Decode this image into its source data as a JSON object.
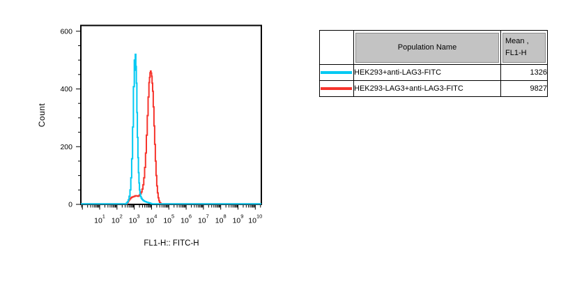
{
  "chart_data": {
    "type": "line",
    "subtype": "flow-cytometry-histogram",
    "title": "",
    "xlabel": "FL1-H:: FITC-H",
    "ylabel": "Count",
    "x_scale": "log10",
    "x_log_range": [
      -0.09,
      10.35
    ],
    "x_tick_base": "10",
    "x_tick_exponents": [
      1,
      2,
      3,
      4,
      5,
      6,
      7,
      8,
      9,
      10
    ],
    "y_range": [
      0,
      620
    ],
    "y_major_ticks": [
      0,
      200,
      400,
      600
    ],
    "y_minor_step": 50,
    "grid": false,
    "legend_position": "separate-table",
    "series": [
      {
        "name": "HEK293+anti-LAG3-FITC",
        "color": "#00C9F2",
        "mean_fl1h": 1326,
        "peak_count": 520,
        "peak_log10_x": 3.06,
        "points": [
          [
            2.3,
            0
          ],
          [
            2.4,
            1
          ],
          [
            2.48,
            2
          ],
          [
            2.55,
            5
          ],
          [
            2.6,
            9
          ],
          [
            2.65,
            16
          ],
          [
            2.7,
            28
          ],
          [
            2.75,
            50
          ],
          [
            2.8,
            92
          ],
          [
            2.85,
            158
          ],
          [
            2.9,
            268
          ],
          [
            2.95,
            408
          ],
          [
            3.0,
            500
          ],
          [
            3.03,
            465
          ],
          [
            3.06,
            520
          ],
          [
            3.09,
            478
          ],
          [
            3.12,
            420
          ],
          [
            3.15,
            318
          ],
          [
            3.18,
            232
          ],
          [
            3.21,
            162
          ],
          [
            3.24,
            110
          ],
          [
            3.27,
            74
          ],
          [
            3.3,
            50
          ],
          [
            3.33,
            36
          ],
          [
            3.36,
            27
          ],
          [
            3.4,
            21
          ],
          [
            3.45,
            17
          ],
          [
            3.5,
            14
          ],
          [
            3.55,
            12
          ],
          [
            3.6,
            10
          ],
          [
            3.65,
            9
          ],
          [
            3.7,
            8
          ],
          [
            3.75,
            7
          ],
          [
            3.8,
            6
          ],
          [
            3.85,
            5
          ],
          [
            3.9,
            4
          ],
          [
            3.95,
            3
          ],
          [
            4.0,
            2
          ],
          [
            4.05,
            1
          ],
          [
            4.15,
            0
          ]
        ]
      },
      {
        "name": "HEK293-LAG3+anti-LAG3-FITC",
        "color": "#F6342C",
        "mean_fl1h": 9827,
        "peak_count": 462,
        "peak_log10_x": 3.94,
        "points": [
          [
            2.52,
            0
          ],
          [
            2.58,
            3
          ],
          [
            2.62,
            7
          ],
          [
            2.66,
            12
          ],
          [
            2.7,
            16
          ],
          [
            2.75,
            20
          ],
          [
            2.8,
            23
          ],
          [
            2.85,
            25
          ],
          [
            2.9,
            26
          ],
          [
            2.95,
            27
          ],
          [
            3.0,
            28
          ],
          [
            3.05,
            30
          ],
          [
            3.1,
            30
          ],
          [
            3.15,
            29
          ],
          [
            3.2,
            28
          ],
          [
            3.25,
            30
          ],
          [
            3.3,
            33
          ],
          [
            3.35,
            37
          ],
          [
            3.4,
            43
          ],
          [
            3.45,
            53
          ],
          [
            3.5,
            68
          ],
          [
            3.55,
            92
          ],
          [
            3.6,
            128
          ],
          [
            3.65,
            178
          ],
          [
            3.7,
            240
          ],
          [
            3.75,
            308
          ],
          [
            3.8,
            372
          ],
          [
            3.85,
            422
          ],
          [
            3.88,
            440
          ],
          [
            3.91,
            456
          ],
          [
            3.94,
            462
          ],
          [
            3.97,
            455
          ],
          [
            4.0,
            444
          ],
          [
            4.03,
            420
          ],
          [
            4.06,
            392
          ],
          [
            4.1,
            338
          ],
          [
            4.14,
            272
          ],
          [
            4.18,
            208
          ],
          [
            4.22,
            150
          ],
          [
            4.26,
            100
          ],
          [
            4.3,
            64
          ],
          [
            4.34,
            40
          ],
          [
            4.38,
            23
          ],
          [
            4.42,
            13
          ],
          [
            4.46,
            7
          ],
          [
            4.5,
            4
          ],
          [
            4.55,
            2
          ],
          [
            4.6,
            1
          ],
          [
            4.7,
            0
          ]
        ]
      }
    ]
  },
  "table": {
    "header": {
      "swatch": "",
      "population": "Population Name",
      "mean_line1": "Mean ,",
      "mean_line2": "FL1-H"
    },
    "rows": [
      {
        "swatch_color": "#00C9F2",
        "population": "HEK293+anti-LAG3-FITC",
        "mean": "1326"
      },
      {
        "swatch_color": "#F6342C",
        "population": "HEK293-LAG3+anti-LAG3-FITC",
        "mean": "9827"
      }
    ]
  }
}
